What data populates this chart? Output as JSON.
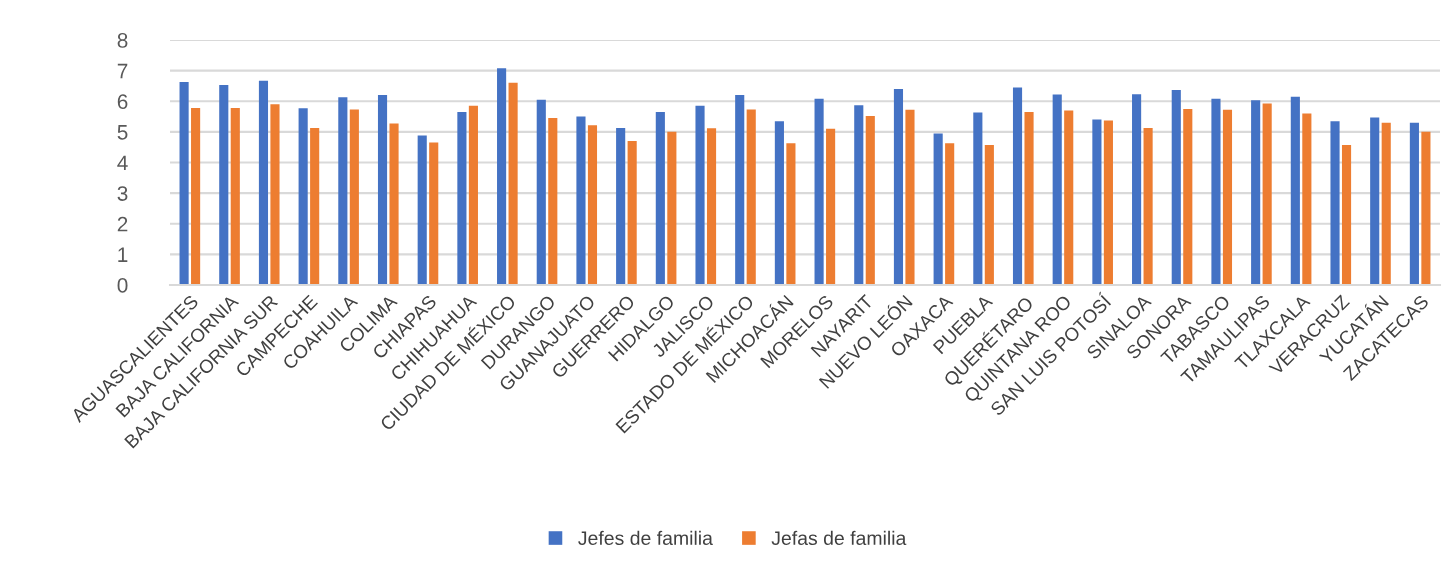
{
  "chart_data": {
    "type": "bar",
    "categories": [
      "AGUASCALIENTES",
      "BAJA CALIFORNIA",
      "BAJA CALIFORNIA SUR",
      "CAMPECHE",
      "COAHUILA",
      "COLIMA",
      "CHIAPAS",
      "CHIHUAHUA",
      "CIUDAD DE MÉXICO",
      "DURANGO",
      "GUANAJUATO",
      "GUERRERO",
      "HIDALGO",
      "JALISCO",
      "ESTADO DE MÉXICO",
      "MICHOACÁN",
      "MORELOS",
      "NAYARIT",
      "NUEVO LEÓN",
      "OAXACA",
      "PUEBLA",
      "QUERÉTARO",
      "QUINTANA ROO",
      "SAN LUIS POTOSÍ",
      "SINALOA",
      "SONORA",
      "TABASCO",
      "TAMAULIPAS",
      "TLAXCALA",
      "VERACRUZ",
      "YUCATÁN",
      "ZACATECAS"
    ],
    "series": [
      {
        "name": "Jefes de familia",
        "color": "#4472c4",
        "values": [
          6.63,
          6.53,
          6.67,
          5.77,
          6.13,
          6.2,
          4.88,
          5.65,
          7.08,
          6.05,
          5.5,
          5.13,
          5.65,
          5.85,
          6.2,
          5.35,
          6.08,
          5.87,
          6.4,
          4.95,
          5.63,
          6.45,
          6.22,
          5.4,
          6.23,
          6.37,
          6.08,
          6.03,
          6.15,
          5.35,
          5.47,
          5.3
        ]
      },
      {
        "name": "Jefas de familia",
        "color": "#ed7d31",
        "values": [
          5.78,
          5.78,
          5.9,
          5.13,
          5.73,
          5.27,
          4.65,
          5.85,
          6.6,
          5.45,
          5.22,
          4.7,
          5.0,
          5.12,
          5.73,
          4.63,
          5.1,
          5.52,
          5.72,
          4.63,
          4.57,
          5.65,
          5.7,
          5.37,
          5.13,
          5.75,
          5.72,
          5.93,
          5.6,
          4.57,
          5.3,
          5.0
        ]
      }
    ],
    "ylim": [
      0,
      8
    ],
    "yticks": [
      0,
      1,
      2,
      3,
      4,
      5,
      6,
      7,
      8
    ],
    "grid": "y",
    "legend": "bottom"
  }
}
